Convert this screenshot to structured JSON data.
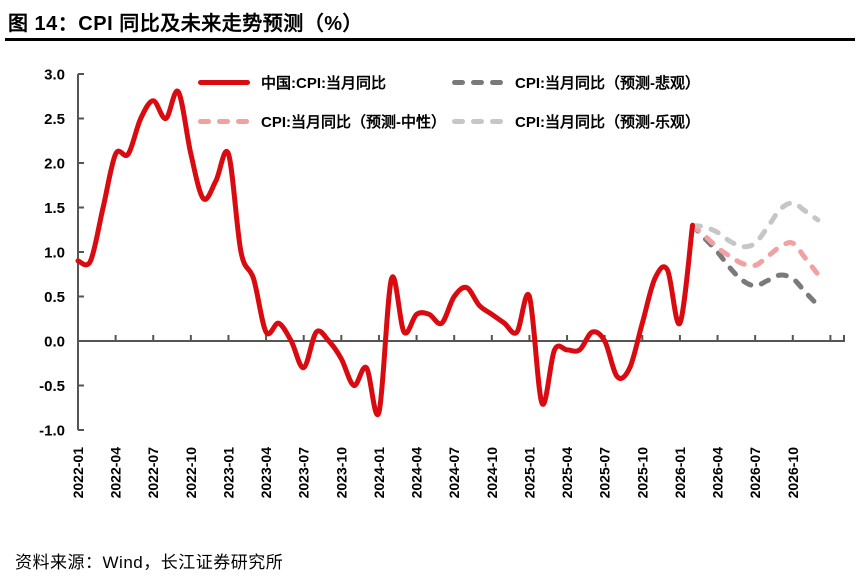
{
  "title": "图 14：CPI 同比及未来走势预测（%）",
  "source": "资料来源：Wind，长江证券研究所",
  "colors": {
    "actual_red": "#D90B10",
    "forecast_pessimistic_gray": "#7A7A7A",
    "forecast_neutral_pink": "#F2A0A2",
    "forecast_optimistic_lightgray": "#C6C6C6",
    "axis": "#555555",
    "text": "#000000"
  },
  "chart_data": {
    "type": "line",
    "title": "图 14：CPI 同比及未来走势预测（%）",
    "xlabel": "",
    "ylabel": "",
    "ylim": [
      -1.0,
      3.0
    ],
    "y_ticks": [
      3.0,
      2.5,
      2.0,
      1.5,
      1.0,
      0.5,
      0.0,
      -0.5,
      -1.0
    ],
    "x_tick_labels": [
      "2022-01",
      "2022-04",
      "2022-07",
      "2022-10",
      "2023-01",
      "2023-04",
      "2023-07",
      "2023-10",
      "2024-01",
      "2024-04",
      "2024-07",
      "2024-10",
      "2025-01",
      "2025-04",
      "2025-07",
      "2025-10",
      "2026-01",
      "2026-04",
      "2026-07",
      "2026-10"
    ],
    "x_frequency": "monthly",
    "grid": false,
    "legend_position": "top-inside",
    "series": [
      {
        "name": "中国:CPI:当月同比",
        "style": "solid",
        "color": "#D90B10",
        "start": "2022-01",
        "values": [
          0.9,
          0.9,
          1.5,
          2.1,
          2.1,
          2.5,
          2.7,
          2.5,
          2.8,
          2.1,
          1.6,
          1.8,
          2.1,
          1.0,
          0.7,
          0.1,
          0.2,
          0.0,
          -0.3,
          0.1,
          0.0,
          -0.2,
          -0.5,
          -0.3,
          -0.8,
          0.7,
          0.1,
          0.3,
          0.3,
          0.2,
          0.5,
          0.6,
          0.4,
          0.3,
          0.2,
          0.1,
          0.5,
          -0.7,
          -0.1,
          -0.1,
          -0.1,
          0.1,
          0.0,
          -0.4,
          -0.3,
          0.2,
          0.7,
          0.8,
          0.2,
          1.3
        ]
      },
      {
        "name": "CPI:当月同比（预测-悲观）",
        "style": "dashed",
        "color": "#7A7A7A",
        "start": "2026-02",
        "values": [
          1.3,
          1.15,
          1.0,
          0.82,
          0.68,
          0.62,
          0.68,
          0.74,
          0.7,
          0.55,
          0.4
        ]
      },
      {
        "name": "CPI:当月同比（预测-中性）",
        "style": "dashed",
        "color": "#F2A0A2",
        "start": "2026-02",
        "values": [
          1.3,
          1.18,
          1.05,
          0.95,
          0.87,
          0.85,
          0.95,
          1.06,
          1.1,
          0.93,
          0.75
        ]
      },
      {
        "name": "CPI:当月同比（预测-乐观）",
        "style": "dashed",
        "color": "#C6C6C6",
        "start": "2026-02",
        "values": [
          1.3,
          1.28,
          1.22,
          1.12,
          1.06,
          1.1,
          1.28,
          1.48,
          1.55,
          1.46,
          1.36
        ]
      }
    ]
  }
}
